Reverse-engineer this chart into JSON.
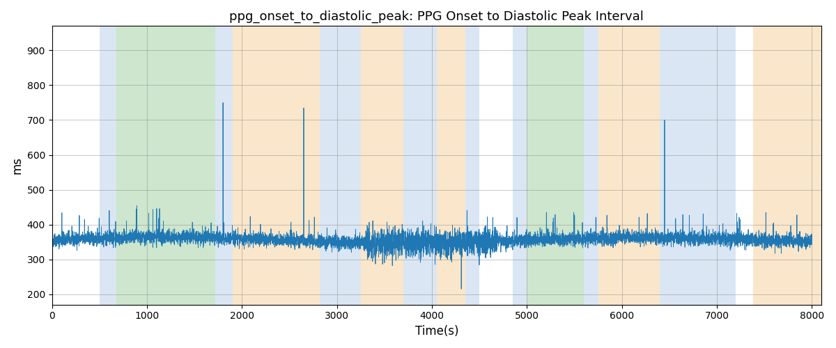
{
  "title": "ppg_onset_to_diastolic_peak: PPG Onset to Diastolic Peak Interval",
  "xlabel": "Time(s)",
  "ylabel": "ms",
  "xlim": [
    0,
    8100
  ],
  "ylim": [
    170,
    970
  ],
  "yticks": [
    200,
    300,
    400,
    500,
    600,
    700,
    800,
    900
  ],
  "xticks": [
    0,
    1000,
    2000,
    3000,
    4000,
    5000,
    6000,
    7000,
    8000
  ],
  "signal_color": "#1f77b4",
  "signal_linewidth": 0.6,
  "background_color": "#ffffff",
  "bands": [
    {
      "xmin": 500,
      "xmax": 680,
      "color": "#adc8e6",
      "alpha": 0.45
    },
    {
      "xmin": 680,
      "xmax": 1720,
      "color": "#90c990",
      "alpha": 0.45
    },
    {
      "xmin": 1720,
      "xmax": 1900,
      "color": "#adc8e6",
      "alpha": 0.45
    },
    {
      "xmin": 1900,
      "xmax": 2820,
      "color": "#f5c98a",
      "alpha": 0.45
    },
    {
      "xmin": 2820,
      "xmax": 3250,
      "color": "#adc8e6",
      "alpha": 0.45
    },
    {
      "xmin": 3250,
      "xmax": 3700,
      "color": "#f5c98a",
      "alpha": 0.45
    },
    {
      "xmin": 3700,
      "xmax": 4050,
      "color": "#adc8e6",
      "alpha": 0.45
    },
    {
      "xmin": 4050,
      "xmax": 4350,
      "color": "#f5c98a",
      "alpha": 0.45
    },
    {
      "xmin": 4350,
      "xmax": 4500,
      "color": "#adc8e6",
      "alpha": 0.45
    },
    {
      "xmin": 4850,
      "xmax": 5000,
      "color": "#adc8e6",
      "alpha": 0.45
    },
    {
      "xmin": 5000,
      "xmax": 5600,
      "color": "#90c990",
      "alpha": 0.45
    },
    {
      "xmin": 5600,
      "xmax": 5750,
      "color": "#adc8e6",
      "alpha": 0.45
    },
    {
      "xmin": 5750,
      "xmax": 6400,
      "color": "#f5c98a",
      "alpha": 0.45
    },
    {
      "xmin": 6400,
      "xmax": 7200,
      "color": "#adc8e6",
      "alpha": 0.45
    },
    {
      "xmin": 7380,
      "xmax": 8100,
      "color": "#f5c98a",
      "alpha": 0.45
    }
  ],
  "seed": 42,
  "n_points": 8000,
  "base_value": 355,
  "noise_std": 10,
  "large_spikes": [
    {
      "t": 1800,
      "v": 750
    },
    {
      "t": 2650,
      "v": 735
    },
    {
      "t": 6450,
      "v": 700
    }
  ],
  "large_dips": [
    {
      "t": 4310,
      "v": 215
    }
  ],
  "medium_spike_region": [
    3300,
    4700
  ],
  "medium_spike_std": 18,
  "scatter_spike_count": 80,
  "scatter_spike_min": 30,
  "scatter_spike_max": 80
}
